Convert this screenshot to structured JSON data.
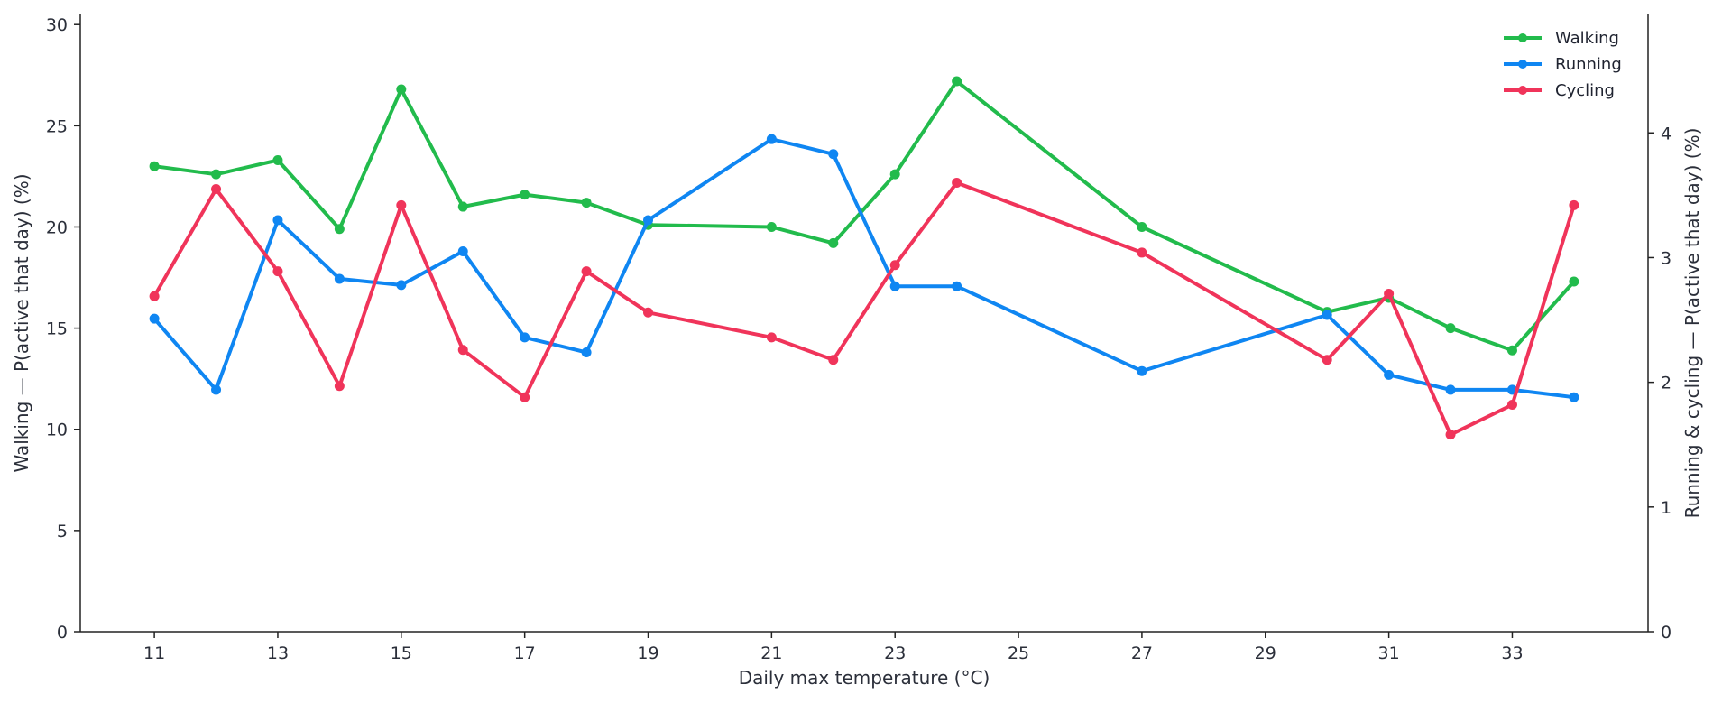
{
  "chart_data": {
    "type": "line",
    "xlabel": "Daily max temperature (°C)",
    "ylabel_left": "Walking — P(active that day) (%)",
    "ylabel_right": "Running & cycling — P(active that day) (%)",
    "x_ticks": [
      11,
      13,
      15,
      17,
      19,
      21,
      23,
      25,
      27,
      29,
      31,
      33
    ],
    "xlim": [
      9.8,
      35.2
    ],
    "ylim_left": [
      0,
      30.5
    ],
    "y_ticks_left": [
      0,
      5,
      10,
      15,
      20,
      25,
      30
    ],
    "ylim_right": [
      0,
      4.95
    ],
    "y_ticks_right": [
      0,
      1,
      2,
      3,
      4
    ],
    "legend_position": "top-right",
    "series": [
      {
        "name": "Walking",
        "axis": "left",
        "color": "#22bb4c",
        "x": [
          11,
          12,
          13,
          14,
          15,
          16,
          17,
          18,
          19,
          21,
          22,
          23,
          24,
          27,
          30,
          31,
          32,
          33,
          34
        ],
        "values": [
          23.0,
          22.6,
          23.3,
          19.9,
          26.8,
          21.0,
          21.6,
          21.2,
          20.1,
          20.0,
          19.2,
          22.6,
          27.2,
          20.0,
          15.8,
          16.5,
          15.0,
          13.9,
          17.3
        ]
      },
      {
        "name": "Running",
        "axis": "right",
        "color": "#0f86f2",
        "x": [
          11,
          12,
          13,
          14,
          15,
          16,
          17,
          18,
          19,
          21,
          22,
          23,
          24,
          27,
          30,
          31,
          32,
          33,
          34
        ],
        "values": [
          2.51,
          1.94,
          3.3,
          2.83,
          2.78,
          3.05,
          2.36,
          2.24,
          3.3,
          3.95,
          3.83,
          2.77,
          2.77,
          2.09,
          2.54,
          2.06,
          1.94,
          1.94,
          1.88
        ]
      },
      {
        "name": "Cycling",
        "axis": "right",
        "color": "#f0345a",
        "x": [
          11,
          12,
          13,
          14,
          15,
          16,
          17,
          18,
          19,
          21,
          22,
          23,
          24,
          27,
          30,
          31,
          32,
          33,
          34
        ],
        "values": [
          2.69,
          3.55,
          2.89,
          1.97,
          3.42,
          2.26,
          1.88,
          2.89,
          2.56,
          2.36,
          2.18,
          2.94,
          3.6,
          3.04,
          2.18,
          2.71,
          1.58,
          1.82,
          3.42
        ]
      }
    ]
  }
}
